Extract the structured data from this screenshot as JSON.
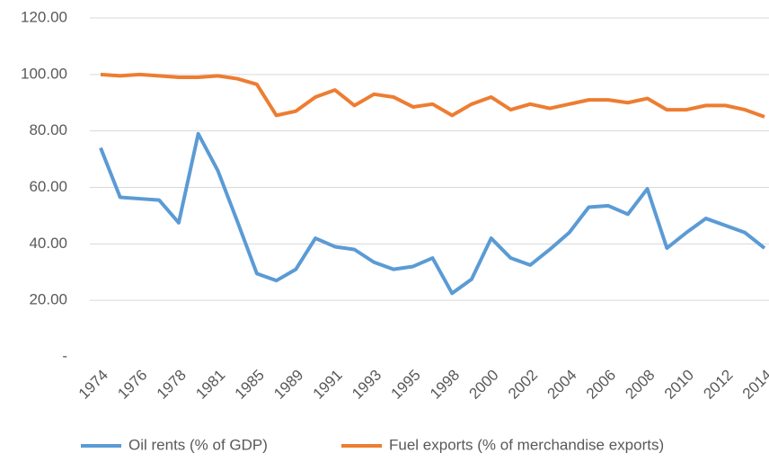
{
  "chart_data": {
    "type": "line",
    "categories": [
      "1974",
      null,
      "1976",
      null,
      "1978",
      null,
      "1981",
      null,
      "1985",
      null,
      "1989",
      null,
      "1991",
      null,
      "1993",
      null,
      "1995",
      null,
      "1998",
      null,
      "2000",
      null,
      "2002",
      null,
      "2004",
      null,
      "2006",
      null,
      "2008",
      null,
      "2010",
      null,
      "2012",
      null,
      "2014"
    ],
    "series": [
      {
        "name": "Oil rents (% of GDP)",
        "color": "#5b9bd5",
        "values": [
          74,
          56.5,
          56,
          55.5,
          47.5,
          79,
          66,
          48,
          29.5,
          27,
          31,
          42,
          39,
          38,
          33.5,
          31,
          32,
          35,
          22.5,
          27.5,
          42,
          35,
          32.5,
          38,
          44,
          53,
          53.5,
          50.5,
          59.5,
          38.5,
          44,
          49,
          46.5,
          44,
          38.5
        ]
      },
      {
        "name": "Fuel exports (% of merchandise exports)",
        "color": "#ed7d31",
        "values": [
          100,
          99.5,
          100,
          99.5,
          99,
          99,
          99.5,
          98.5,
          96.5,
          85.5,
          87,
          92,
          94.5,
          89,
          93,
          92,
          88.5,
          89.5,
          85.5,
          89.5,
          92,
          87.5,
          89.5,
          88,
          89.5,
          91,
          91,
          90,
          91.5,
          87.5,
          87.5,
          89,
          89,
          87.5,
          85
        ]
      }
    ],
    "ylim": [
      0,
      120
    ],
    "yticks": [
      {
        "value": 0,
        "label": "-"
      },
      {
        "value": 20,
        "label": "20.00"
      },
      {
        "value": 40,
        "label": "40.00"
      },
      {
        "value": 60,
        "label": "60.00"
      },
      {
        "value": 80,
        "label": "80.00"
      },
      {
        "value": 100,
        "label": "100.00"
      },
      {
        "value": 120,
        "label": "120.00"
      }
    ],
    "grid": true,
    "legend": "bottom"
  }
}
